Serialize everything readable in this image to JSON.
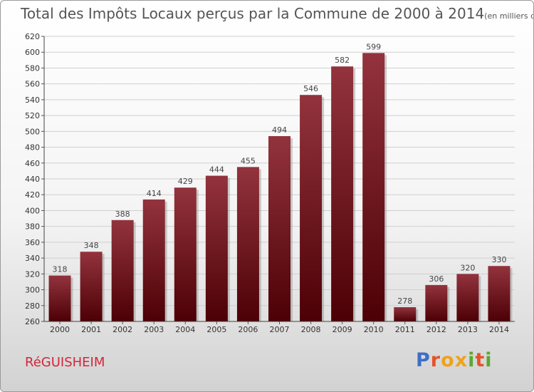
{
  "chart_data": {
    "type": "bar",
    "title": "Total des Impôts Locaux perçus par la Commune de 2000 à 2014",
    "title_unit": "(en milliers d'€)",
    "categories": [
      "2000",
      "2001",
      "2002",
      "2003",
      "2004",
      "2005",
      "2006",
      "2007",
      "2008",
      "2009",
      "2010",
      "2011",
      "2012",
      "2013",
      "2014"
    ],
    "values": [
      318,
      348,
      388,
      414,
      429,
      444,
      455,
      494,
      546,
      582,
      599,
      278,
      306,
      320,
      330
    ],
    "ylim": [
      260,
      620
    ],
    "ytick_step": 20,
    "grid": true,
    "xlabel": "",
    "ylabel": ""
  },
  "commune": "RéGUISHEIM",
  "logo": {
    "letters": [
      "P",
      "r",
      "o",
      "x",
      "i",
      "t",
      "i"
    ]
  },
  "colors": {
    "bar_light": "#93333d",
    "bar_dark": "#4c0005",
    "commune_text": "#d2263a",
    "logo": [
      "#3f6fc4",
      "#e4542a",
      "#f0a21b",
      "#f0a21b",
      "#5aa832",
      "#e4542a",
      "#5aa832"
    ]
  }
}
